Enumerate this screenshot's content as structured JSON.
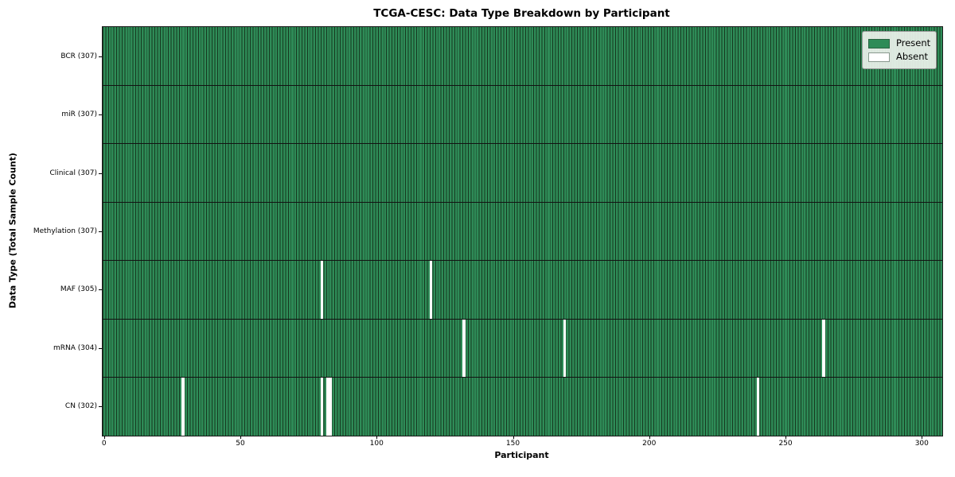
{
  "chart_data": {
    "type": "heatmap",
    "title": "TCGA-CESC: Data Type Breakdown by Participant",
    "xlabel": "Participant",
    "ylabel": "Data Type (Total Sample Count)",
    "xlim": [
      -0.5,
      307.5
    ],
    "n_participants": 307,
    "x_ticks": [
      0,
      50,
      100,
      150,
      200,
      250,
      300
    ],
    "rows": [
      {
        "label": "BCR (307)",
        "data_type": "BCR",
        "present_count": 307,
        "absent_participants": []
      },
      {
        "label": "miR (307)",
        "data_type": "miR",
        "present_count": 307,
        "absent_participants": []
      },
      {
        "label": "Clinical (307)",
        "data_type": "Clinical",
        "present_count": 307,
        "absent_participants": []
      },
      {
        "label": "Methylation (307)",
        "data_type": "Methylation",
        "present_count": 307,
        "absent_participants": []
      },
      {
        "label": "MAF (305)",
        "data_type": "MAF",
        "present_count": 305,
        "absent_participants": [
          80,
          120
        ]
      },
      {
        "label": "mRNA (304)",
        "data_type": "mRNA",
        "present_count": 304,
        "absent_participants": [
          132,
          169,
          264
        ]
      },
      {
        "label": "CN (302)",
        "data_type": "CN",
        "present_count": 302,
        "absent_participants": [
          29,
          80,
          82,
          83,
          240
        ]
      }
    ],
    "legend": [
      {
        "label": "Present",
        "color": "#2e8b57"
      },
      {
        "label": "Absent",
        "color": "#ffffff"
      }
    ],
    "colors": {
      "present": "#2e8b57",
      "absent": "#ffffff",
      "cell_edge": "#16381f",
      "row_separator": "#121212",
      "axis_frame": "#1a1a1a"
    },
    "legend_position": "upper right",
    "grid": false
  }
}
